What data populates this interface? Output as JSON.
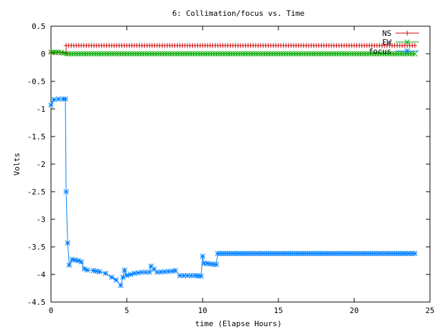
{
  "chart_data": {
    "type": "line",
    "title": "6: Collimation/focus vs. Time",
    "xlabel": "time (Elapse Hours)",
    "ylabel": "Volts",
    "xlim": [
      0,
      25
    ],
    "ylim": [
      -4.5,
      0.5
    ],
    "xticks": [
      0,
      5,
      10,
      15,
      20,
      25
    ],
    "xtick_labels": [
      "0",
      "5",
      "10",
      "15",
      "20",
      "25"
    ],
    "yticks": [
      0.5,
      0,
      -0.5,
      -1,
      -1.5,
      -2,
      -2.5,
      -3,
      -3.5,
      -4,
      -4.5
    ],
    "ytick_labels": [
      "0.5",
      "0",
      "-0.5",
      "-1",
      "-1.5",
      "-2",
      "-2.5",
      "-3",
      "-3.5",
      "-4",
      "-4.5"
    ],
    "grid": false,
    "legend_position": "top-right",
    "series": [
      {
        "name": "NS",
        "color": "#cc0000",
        "marker": "plus",
        "x": [
          0,
          0.2,
          0.4,
          0.6,
          0.8,
          1.0,
          1.0,
          1.5,
          2,
          3,
          4,
          5,
          6,
          7,
          8,
          9,
          10,
          11,
          12,
          13,
          14,
          15,
          16,
          17,
          18,
          19,
          20,
          21,
          22,
          23,
          24
        ],
        "y": [
          0.02,
          0.02,
          0.02,
          0.02,
          0.02,
          0.02,
          0.15,
          0.15,
          0.15,
          0.15,
          0.15,
          0.15,
          0.15,
          0.15,
          0.15,
          0.15,
          0.15,
          0.15,
          0.15,
          0.15,
          0.15,
          0.15,
          0.15,
          0.15,
          0.15,
          0.15,
          0.15,
          0.15,
          0.15,
          0.15,
          0.15
        ]
      },
      {
        "name": "EW",
        "color": "#00aa00",
        "marker": "x",
        "x": [
          0,
          0.5,
          1,
          1.5,
          2,
          3,
          4,
          5,
          6,
          7,
          8,
          9,
          10,
          11,
          12,
          13,
          14,
          15,
          16,
          17,
          18,
          19,
          20,
          21,
          22,
          23,
          24
        ],
        "y": [
          0.03,
          0.03,
          0.0,
          0.0,
          0.0,
          0.0,
          0.0,
          0.0,
          0.0,
          0.0,
          0.0,
          0.0,
          0.0,
          0.0,
          0.0,
          0.0,
          0.0,
          0.0,
          0.0,
          0.0,
          0.0,
          0.0,
          0.0,
          0.0,
          0.0,
          0.0,
          0.0
        ]
      },
      {
        "name": "focus",
        "color": "#0080ff",
        "marker": "star",
        "x": [
          0.0,
          0.2,
          0.5,
          0.8,
          0.95,
          1.0,
          1.1,
          1.2,
          1.4,
          1.6,
          1.8,
          2.0,
          2.2,
          2.4,
          2.8,
          3.2,
          3.6,
          4.0,
          4.3,
          4.6,
          4.75,
          4.85,
          5.0,
          5.5,
          6.0,
          6.5,
          6.6,
          7.0,
          7.5,
          8.0,
          8.2,
          8.5,
          9.0,
          9.5,
          9.9,
          10.0,
          10.1,
          10.3,
          10.5,
          10.9,
          11.0,
          12,
          13,
          14,
          15,
          16,
          17,
          18,
          19,
          20,
          21,
          22,
          23,
          24
        ],
        "y": [
          -0.93,
          -0.83,
          -0.82,
          -0.82,
          -0.82,
          -2.5,
          -3.43,
          -3.83,
          -3.73,
          -3.74,
          -3.75,
          -3.77,
          -3.9,
          -3.92,
          -3.93,
          -3.95,
          -3.98,
          -4.05,
          -4.1,
          -4.2,
          -4.05,
          -3.92,
          -4.02,
          -3.98,
          -3.96,
          -3.96,
          -3.85,
          -3.96,
          -3.95,
          -3.94,
          -3.93,
          -4.02,
          -4.02,
          -4.02,
          -4.03,
          -3.67,
          -3.8,
          -3.8,
          -3.81,
          -3.82,
          -3.62,
          -3.62,
          -3.62,
          -3.62,
          -3.62,
          -3.62,
          -3.62,
          -3.62,
          -3.62,
          -3.62,
          -3.62,
          -3.62,
          -3.62,
          -3.62
        ]
      }
    ]
  }
}
